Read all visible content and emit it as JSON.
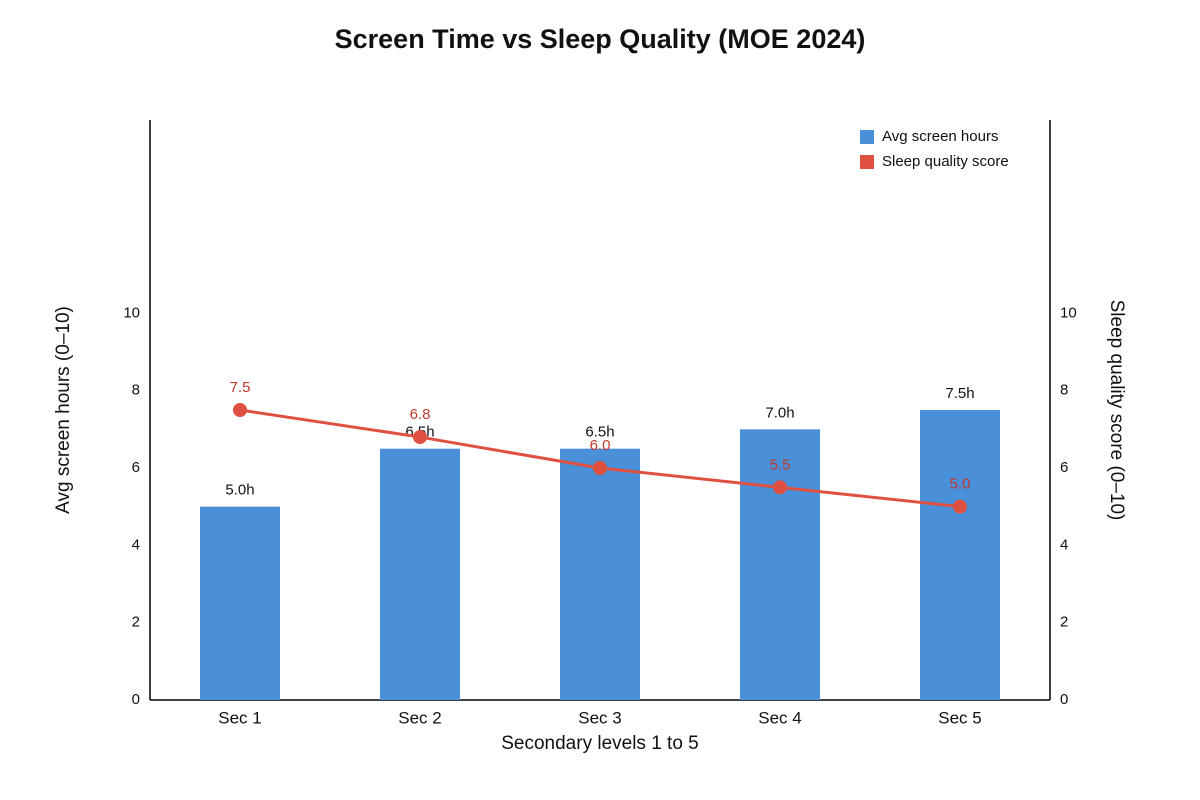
{
  "chart_data": {
    "type": "bar-line",
    "title": "Screen Time vs Sleep Quality (MOE 2024)",
    "x_label": "Secondary levels 1 to 5",
    "y_label": "Avg screen hours (0–10)",
    "y2_label": "Sleep quality score (0–10)",
    "categories": [
      "Sec 1",
      "Sec 2",
      "Sec 3",
      "Sec 4",
      "Sec 5"
    ],
    "series": [
      {
        "name": "Avg screen hours",
        "type": "bar",
        "color": "#4a90d9",
        "values": [
          5.0,
          6.5,
          6.5,
          7.0,
          7.5
        ],
        "value_labels": [
          "5.0h",
          "6.5h",
          "6.5h",
          "7.0h",
          "7.5h"
        ]
      },
      {
        "name": "Sleep quality score",
        "type": "line",
        "axis": "y2",
        "color": "#e05040",
        "values": [
          7.5,
          6.8,
          6.0,
          5.5,
          5.0
        ],
        "value_labels": [
          "7.5",
          "6.8",
          "6.0",
          "5.5",
          "5.0"
        ]
      }
    ],
    "ylim": [
      0,
      15
    ],
    "yticks": [
      0,
      2,
      4,
      6,
      8,
      10
    ],
    "y2lim": [
      0,
      15
    ],
    "y2ticks": [
      0,
      2,
      4,
      6,
      8,
      10
    ],
    "legend": "upper right",
    "grid": false
  }
}
